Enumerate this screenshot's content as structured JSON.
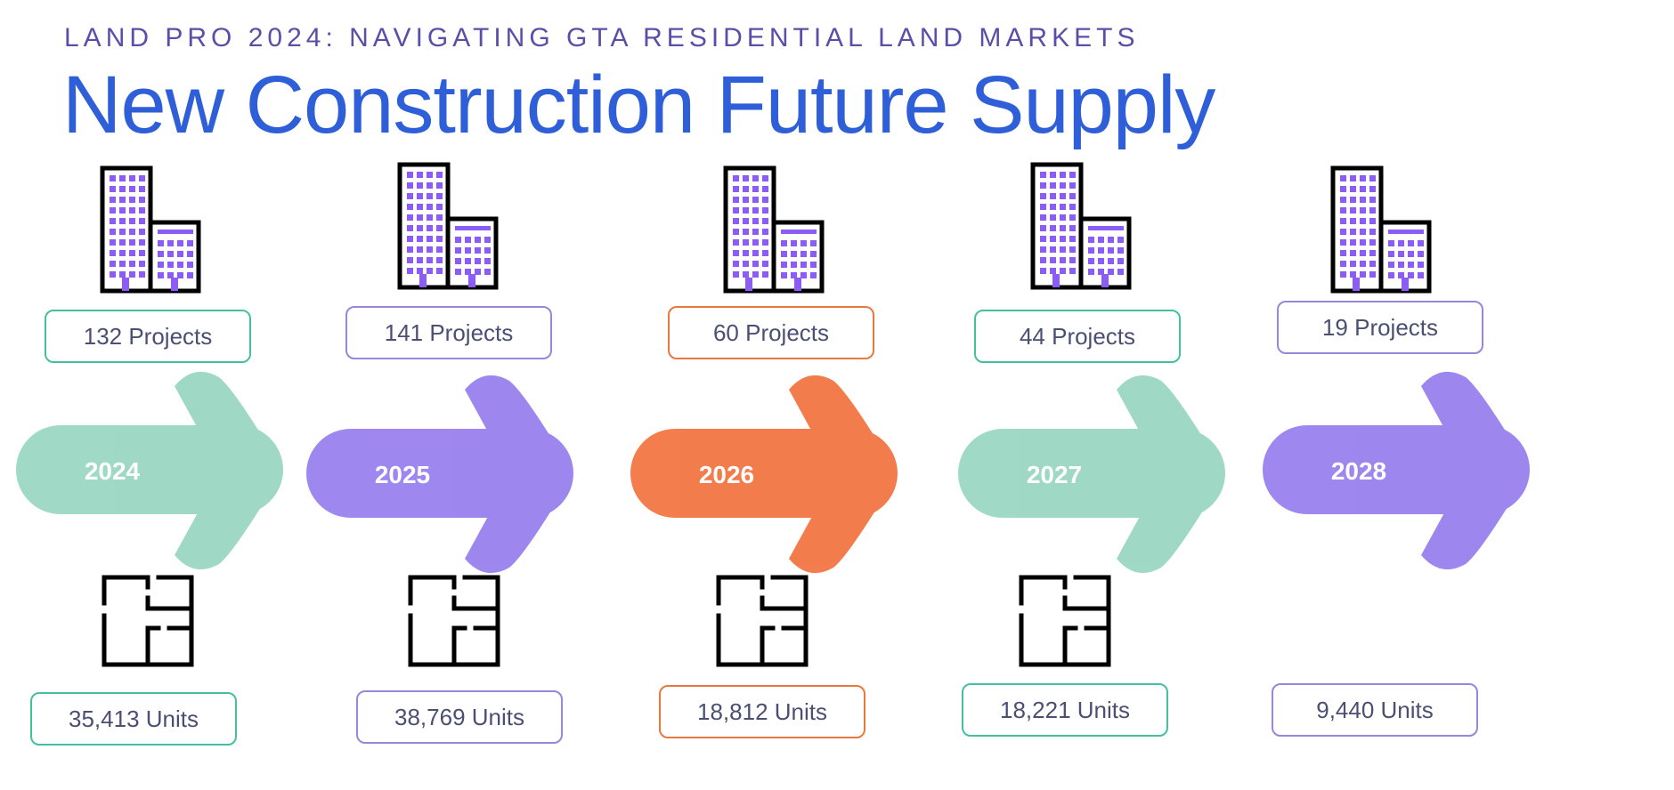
{
  "header": {
    "subtitle": "LAND PRO 2024: NAVIGATING GTA RESIDENTIAL LAND MARKETS",
    "title": "New Construction Future Supply"
  },
  "colors": {
    "teal": "#8fd3bd",
    "purple": "#8d73ec",
    "orange": "#f2662f",
    "teal_border": "#46bfa0",
    "purple_border": "#9a86d8",
    "orange_border": "#e7793f",
    "icon_purple": "#8b5cf6"
  },
  "icons": {
    "building": "building-icon",
    "floorplan": "floorplan-icon"
  },
  "years": [
    {
      "year": "2024",
      "projects": "132 Projects",
      "units": "35,413 Units",
      "color": "#8fd3bd",
      "border": "#46bfa0"
    },
    {
      "year": "2025",
      "projects": "141 Projects",
      "units": "38,769 Units",
      "color": "#8d73ec",
      "border": "#9a86d8"
    },
    {
      "year": "2026",
      "projects": "60 Projects",
      "units": "18,812 Units",
      "color": "#f2662f",
      "border": "#e7793f"
    },
    {
      "year": "2027",
      "projects": "44 Projects",
      "units": "18,221 Units",
      "color": "#8fd3bd",
      "border": "#46bfa0"
    },
    {
      "year": "2028",
      "projects": "19 Projects",
      "units": "9,440 Units",
      "color": "#8d73ec",
      "border": "#9a86d8"
    }
  ]
}
